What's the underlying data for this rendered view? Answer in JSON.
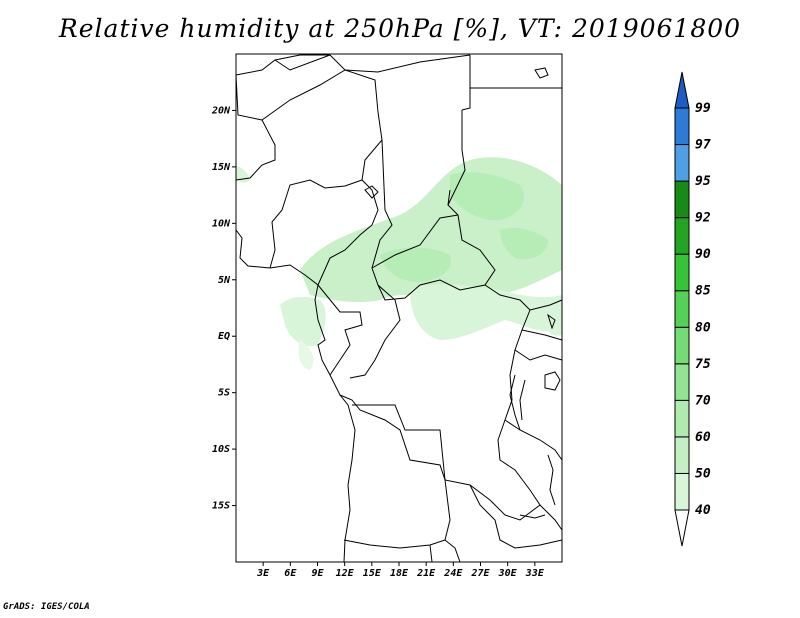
{
  "title": "Relative humidity at 250hPa [%], VT: 2019061800",
  "credit": "GrADS: IGES/COLA",
  "map": {
    "lon_range": [
      0,
      36
    ],
    "lat_range": [
      -20,
      25
    ],
    "lon_ticks": [
      "3E",
      "6E",
      "9E",
      "12E",
      "15E",
      "18E",
      "21E",
      "24E",
      "27E",
      "30E",
      "33E"
    ],
    "lat_ticks": [
      "20N",
      "15N",
      "10N",
      "5N",
      "EQ",
      "5S",
      "10S",
      "15S"
    ]
  },
  "colorbar": {
    "labels": [
      "40",
      "50",
      "60",
      "70",
      "75",
      "80",
      "85",
      "90",
      "92",
      "95",
      "97",
      "99"
    ],
    "colors": [
      "#ebfaeb",
      "#d7f5d7",
      "#c3f0c3",
      "#aeebae",
      "#91e491",
      "#73dc73",
      "#55d255",
      "#37c337",
      "#23a523",
      "#168c16",
      "#4d9fe6",
      "#2d7ad9",
      "#1d5cc2"
    ]
  }
}
